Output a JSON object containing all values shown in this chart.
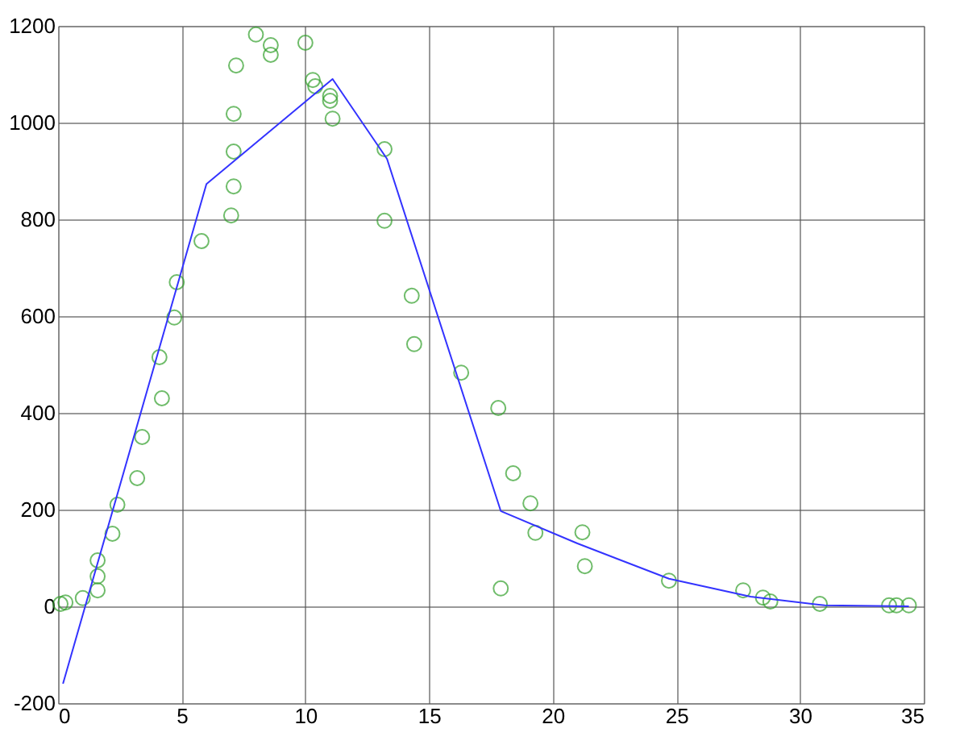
{
  "chart_data": {
    "type": "scatter",
    "xlim": [
      0,
      35
    ],
    "ylim": [
      -200,
      1200
    ],
    "xticks": [
      0,
      5,
      10,
      15,
      20,
      25,
      30,
      35
    ],
    "yticks": [
      -200,
      0,
      200,
      400,
      600,
      800,
      1000,
      1200
    ],
    "grid": true,
    "marker": "circle",
    "series": [
      {
        "color": "#33a02c",
        "x": [
          0.1,
          0.3,
          1.0,
          1.6,
          1.6,
          1.6,
          2.2,
          2.4,
          3.2,
          3.4,
          4.1,
          4.2,
          4.7,
          4.8,
          5.8,
          7.0,
          7.1,
          7.1,
          7.1,
          7.2,
          8.0,
          8.6,
          8.6,
          10.0,
          10.3,
          10.4,
          11.0,
          11.0,
          11.1,
          13.2,
          13.2,
          14.3,
          14.4,
          16.3,
          17.8,
          17.9,
          18.4,
          19.1,
          19.3,
          21.2,
          21.3,
          24.7,
          27.7,
          28.5,
          28.8,
          30.8,
          33.6,
          33.9,
          34.4
        ],
        "values": [
          5,
          8,
          17,
          95,
          62,
          33,
          150,
          210,
          265,
          350,
          515,
          430,
          597,
          670,
          755,
          808,
          868,
          940,
          1018,
          1118,
          1182,
          1160,
          1140,
          1165,
          1088,
          1075,
          1055,
          1045,
          1008,
          945,
          797,
          642,
          542,
          483,
          410,
          37,
          275,
          213,
          152,
          153,
          83,
          53,
          33,
          18,
          10,
          5,
          2,
          2,
          2
        ]
      },
      {
        "type": "line",
        "color": "#3333ff",
        "marker": "none",
        "x": [
          0.2,
          6.0,
          11.1,
          13.3,
          17.9,
          21.0,
          24.7,
          28.0,
          31.0,
          34.4
        ],
        "values": [
          -160,
          873,
          1090,
          925,
          197,
          130,
          57,
          20,
          2,
          0
        ]
      }
    ]
  }
}
